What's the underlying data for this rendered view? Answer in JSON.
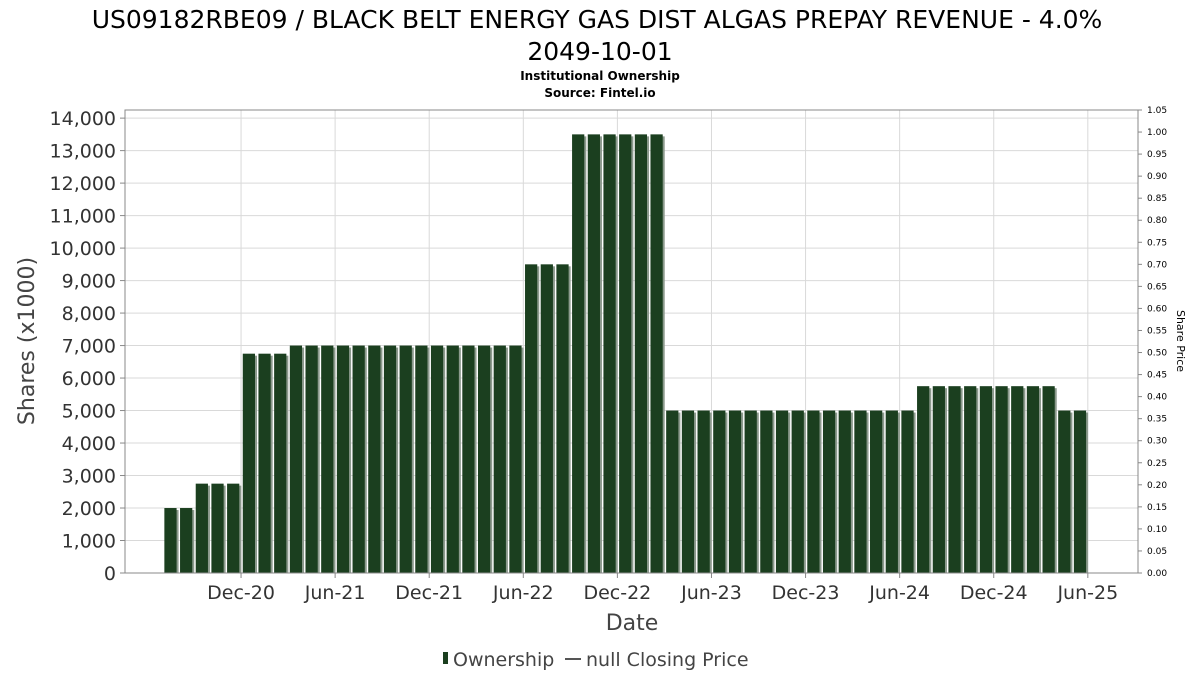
{
  "chart_data": {
    "type": "bar",
    "title_line1": "US09182RBE09 / BLACK BELT ENERGY GAS DIST ALGAS PREPAY REVENUE - 4.0%",
    "title_line2": "2049-10-01",
    "subtitle_line1": "Institutional Ownership",
    "subtitle_line2": "Source: Fintel.io",
    "xlabel": "Date",
    "ylabel": "Shares (x1000)",
    "y2label": "Share Price",
    "ylim": [
      0,
      14250
    ],
    "y2lim": [
      0,
      1.05
    ],
    "y_ticks": [
      {
        "value": 0,
        "label": "0"
      },
      {
        "value": 1000,
        "label": "1,000"
      },
      {
        "value": 2000,
        "label": "2,000"
      },
      {
        "value": 3000,
        "label": "3,000"
      },
      {
        "value": 4000,
        "label": "4,000"
      },
      {
        "value": 5000,
        "label": "5,000"
      },
      {
        "value": 6000,
        "label": "6,000"
      },
      {
        "value": 7000,
        "label": "7,000"
      },
      {
        "value": 8000,
        "label": "8,000"
      },
      {
        "value": 9000,
        "label": "9,000"
      },
      {
        "value": 10000,
        "label": "10,000"
      },
      {
        "value": 11000,
        "label": "11,000"
      },
      {
        "value": 12000,
        "label": "12,000"
      },
      {
        "value": 13000,
        "label": "13,000"
      },
      {
        "value": 14000,
        "label": "14,000"
      }
    ],
    "y2_ticks": [
      "0.00",
      "0.05",
      "0.10",
      "0.15",
      "0.20",
      "0.25",
      "0.30",
      "0.35",
      "0.40",
      "0.45",
      "0.50",
      "0.55",
      "0.60",
      "0.65",
      "0.70",
      "0.75",
      "0.80",
      "0.85",
      "0.90",
      "0.95",
      "1.00",
      "1.05"
    ],
    "x_ticks": [
      {
        "label": "Dec-20",
        "month_index": 0
      },
      {
        "label": "Jun-21",
        "month_index": 6
      },
      {
        "label": "Dec-21",
        "month_index": 12
      },
      {
        "label": "Jun-22",
        "month_index": 18
      },
      {
        "label": "Dec-22",
        "month_index": 24
      },
      {
        "label": "Jun-23",
        "month_index": 30
      },
      {
        "label": "Dec-23",
        "month_index": 36
      },
      {
        "label": "Jun-24",
        "month_index": 42
      },
      {
        "label": "Dec-24",
        "month_index": 48
      },
      {
        "label": "Jun-25",
        "month_index": 54
      }
    ],
    "x_range_months": [
      -7.4,
      57.2
    ],
    "bar_start_month": -4.5,
    "bar_step_months": 1.0,
    "values": [
      2000,
      2000,
      2750,
      2750,
      2750,
      6750,
      6750,
      6750,
      7000,
      7000,
      7000,
      7000,
      7000,
      7000,
      7000,
      7000,
      7000,
      7000,
      7000,
      7000,
      7000,
      7000,
      7000,
      9500,
      9500,
      9500,
      13500,
      13500,
      13500,
      13500,
      13500,
      13500,
      5000,
      5000,
      5000,
      5000,
      5000,
      5000,
      5000,
      5000,
      5000,
      5000,
      5000,
      5000,
      5000,
      5000,
      5000,
      5000,
      5750,
      5750,
      5750,
      5750,
      5750,
      5750,
      5750,
      5750,
      5750,
      5000,
      5000
    ],
    "grid": true,
    "legend": {
      "placement": "bottom",
      "items": [
        {
          "label": "Ownership",
          "kind": "bar"
        },
        {
          "label": "null Closing Price",
          "kind": "line"
        }
      ]
    },
    "colors": {
      "bar_fill": "#1b3f1f",
      "bar_shadow": "#8c9a8d",
      "grid": "#d9d9d9",
      "axis": "#888888"
    }
  }
}
